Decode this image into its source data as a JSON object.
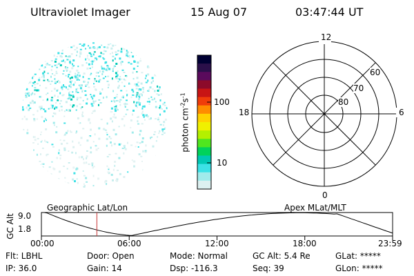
{
  "header": {
    "title": "Ultraviolet Imager",
    "date": "15 Aug 07",
    "time": "03:47:44 UT"
  },
  "colorbar": {
    "unit_prefix": "photon cm",
    "unit_exp1": "-2",
    "unit_s": "s",
    "unit_exp2": "-1",
    "ticks": [
      "100",
      "10"
    ],
    "colors": [
      "#000033",
      "#2b0f4a",
      "#5a0a5c",
      "#8c0a2a",
      "#c81414",
      "#f03c0a",
      "#ff8c00",
      "#ffd200",
      "#f0f000",
      "#b4f000",
      "#50e61e",
      "#00d25a",
      "#00c8b4",
      "#3ce1e6",
      "#a0ebeb",
      "#dcf0f0"
    ]
  },
  "polar": {
    "labels": {
      "top": "12",
      "bottom": "0",
      "left": "18",
      "right": "6"
    },
    "rings": [
      "60",
      "70",
      "80"
    ]
  },
  "timeline": {
    "left_label": "Geographic Lat/Lon",
    "right_label": "Apex MLat/MLT",
    "axis_label": "GC Alt",
    "y_ticks": [
      "9.0",
      "1.8"
    ],
    "x_ticks": [
      "00:00",
      "06:00",
      "12:00",
      "18:00",
      "23:59"
    ],
    "marker_hours": 3.79
  },
  "status": {
    "row1": [
      "Flt: LBHL",
      "Door: Open",
      "Mode: Normal",
      "GC Alt: 5.4 Re",
      "GLat: *****"
    ],
    "row2": [
      "IP: 36.0",
      "Gain: 14",
      "Dsp: -116.3",
      "Seq: 39",
      "GLon: *****"
    ]
  }
}
